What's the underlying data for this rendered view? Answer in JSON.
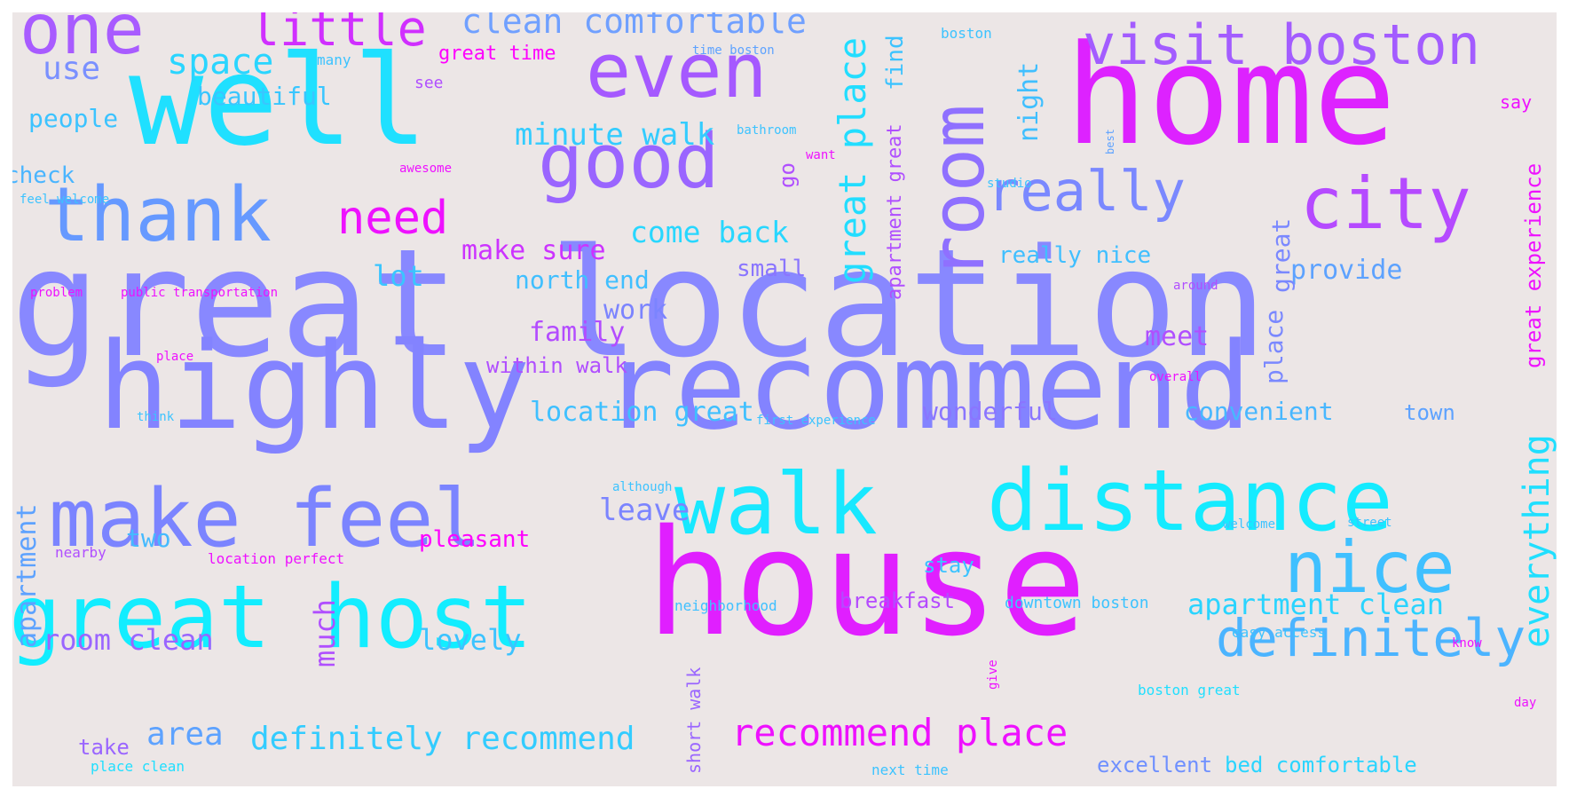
{
  "background": "#ece6e6",
  "colormap": "cool",
  "words": [
    {
      "text": "great location",
      "color": "#8888ff"
    },
    {
      "text": "highly recommend",
      "color": "#8383ff"
    },
    {
      "text": "home",
      "color": "#dd22ff"
    },
    {
      "text": "house",
      "color": "#e01fff"
    },
    {
      "text": "well",
      "color": "#1fe0ff"
    },
    {
      "text": "great host",
      "color": "#12edff"
    },
    {
      "text": "make feel",
      "color": "#7b84ff"
    },
    {
      "text": "distance",
      "color": "#14ebff"
    },
    {
      "text": "walk",
      "color": "#18e8ff"
    },
    {
      "text": "room",
      "color": "#8f70ff"
    },
    {
      "text": "good",
      "color": "#9a65ff"
    },
    {
      "text": "even",
      "color": "#a559ff"
    },
    {
      "text": "thank",
      "color": "#6699ff"
    },
    {
      "text": "city",
      "color": "#b54aff"
    },
    {
      "text": "nice",
      "color": "#3fc0ff"
    },
    {
      "text": "one",
      "color": "#a85bff"
    },
    {
      "text": "visit boston",
      "color": "#a35cff"
    },
    {
      "text": "really",
      "color": "#7a88ff"
    },
    {
      "text": "definitely",
      "color": "#4bb4ff"
    },
    {
      "text": "little",
      "color": "#d02fff"
    },
    {
      "text": "clean comfortable",
      "color": "#70a0ff"
    },
    {
      "text": "need",
      "color": "#ee11ff"
    },
    {
      "text": "great place",
      "color": "#22ddff"
    },
    {
      "text": "space",
      "color": "#2ad5ff"
    },
    {
      "text": "use",
      "color": "#7a90ff"
    },
    {
      "text": "recommend place",
      "color": "#ee11ff"
    },
    {
      "text": "definitely recommend",
      "color": "#33ccff"
    },
    {
      "text": "apartment clean",
      "color": "#2ad4ff"
    },
    {
      "text": "everything",
      "color": "#20dfff"
    },
    {
      "text": "great time",
      "color": "#ff00ff"
    },
    {
      "text": "beautiful",
      "color": "#39c6ff"
    },
    {
      "text": "people",
      "color": "#3cc3ff"
    },
    {
      "text": "check",
      "color": "#4ab5ff"
    },
    {
      "text": "minute walk",
      "color": "#33ccff"
    },
    {
      "text": "come back",
      "color": "#28d7ff"
    },
    {
      "text": "make sure",
      "color": "#cc33ff"
    },
    {
      "text": "lot",
      "color": "#3ac5ff"
    },
    {
      "text": "north end",
      "color": "#40bfff"
    },
    {
      "text": "work",
      "color": "#7b84ff"
    },
    {
      "text": "family",
      "color": "#b34cff"
    },
    {
      "text": "within walk",
      "color": "#b04fff"
    },
    {
      "text": "location great",
      "color": "#3fc0ff"
    },
    {
      "text": "wonderful",
      "color": "#8a75ff"
    },
    {
      "text": "convenient",
      "color": "#48b7ff"
    },
    {
      "text": "leave",
      "color": "#7b84ff"
    },
    {
      "text": "two",
      "color": "#45baff"
    },
    {
      "text": "area",
      "color": "#5da2ff"
    },
    {
      "text": "pleasant",
      "color": "#ff00ff"
    },
    {
      "text": "room clean",
      "color": "#9a65ff"
    },
    {
      "text": "lovely",
      "color": "#3cc3ff"
    },
    {
      "text": "much",
      "color": "#b04fff"
    },
    {
      "text": "take",
      "color": "#9a65ff"
    },
    {
      "text": "stay",
      "color": "#3cc3ff"
    },
    {
      "text": "breakfast",
      "color": "#b54aff"
    },
    {
      "text": "excellent",
      "color": "#6f90ff"
    },
    {
      "text": "bed comfortable",
      "color": "#2ad5ff"
    },
    {
      "text": "provide",
      "color": "#5da2ff"
    },
    {
      "text": "really nice",
      "color": "#40bfff"
    },
    {
      "text": "meet",
      "color": "#b04fff"
    },
    {
      "text": "town",
      "color": "#5da2ff"
    },
    {
      "text": "small",
      "color": "#8a75ff"
    },
    {
      "text": "night",
      "color": "#40bfff"
    },
    {
      "text": "find",
      "color": "#3cc3ff"
    },
    {
      "text": "go",
      "color": "#b04fff"
    },
    {
      "text": "apartment great",
      "color": "#b04fff"
    },
    {
      "text": "apartment",
      "color": "#5da2ff"
    },
    {
      "text": "great",
      "color": "#7a88ff"
    },
    {
      "text": "place",
      "color": "#7a88ff"
    },
    {
      "text": "great experience",
      "color": "#ee11ff"
    },
    {
      "text": "say",
      "color": "#ee11ff"
    },
    {
      "text": "short walk",
      "color": "#9a65ff"
    },
    {
      "text": "downtown boston",
      "color": "#3cc3ff"
    },
    {
      "text": "easy access",
      "color": "#3cc3ff"
    },
    {
      "text": "boston great",
      "color": "#20dfff"
    },
    {
      "text": "next time",
      "color": "#3cc3ff"
    },
    {
      "text": "place clean",
      "color": "#20dfff"
    },
    {
      "text": "location perfect",
      "color": "#ee11ff"
    },
    {
      "text": "nearby",
      "color": "#b04fff"
    },
    {
      "text": "neighborhood",
      "color": "#3fc0ff"
    },
    {
      "text": "welcome",
      "color": "#3cc3ff"
    },
    {
      "text": "street",
      "color": "#3cc3ff"
    },
    {
      "text": "know",
      "color": "#ee11ff"
    },
    {
      "text": "day",
      "color": "#ee11ff"
    },
    {
      "text": "give",
      "color": "#ee11ff"
    },
    {
      "text": "although",
      "color": "#3cc3ff"
    },
    {
      "text": "first experience",
      "color": "#3cc3ff"
    },
    {
      "text": "think",
      "color": "#3cc3ff"
    },
    {
      "text": "overall",
      "color": "#ee11ff"
    },
    {
      "text": "place",
      "color": "#ee11ff"
    },
    {
      "text": "problem",
      "color": "#ee11ff"
    },
    {
      "text": "public transportation",
      "color": "#ee11ff"
    },
    {
      "text": "around",
      "color": "#b04fff"
    },
    {
      "text": "boston",
      "color": "#3cc3ff"
    },
    {
      "text": "time boston",
      "color": "#5da2ff"
    },
    {
      "text": "many",
      "color": "#3cc3ff"
    },
    {
      "text": "see",
      "color": "#b04fff"
    },
    {
      "text": "bathroom",
      "color": "#3cc3ff"
    },
    {
      "text": "want",
      "color": "#ee11ff"
    },
    {
      "text": "awesome",
      "color": "#ee11ff"
    },
    {
      "text": "feel welcome",
      "color": "#3cc3ff"
    },
    {
      "text": "studio",
      "color": "#3cc3ff"
    },
    {
      "text": "best",
      "color": "#5da2ff"
    }
  ]
}
